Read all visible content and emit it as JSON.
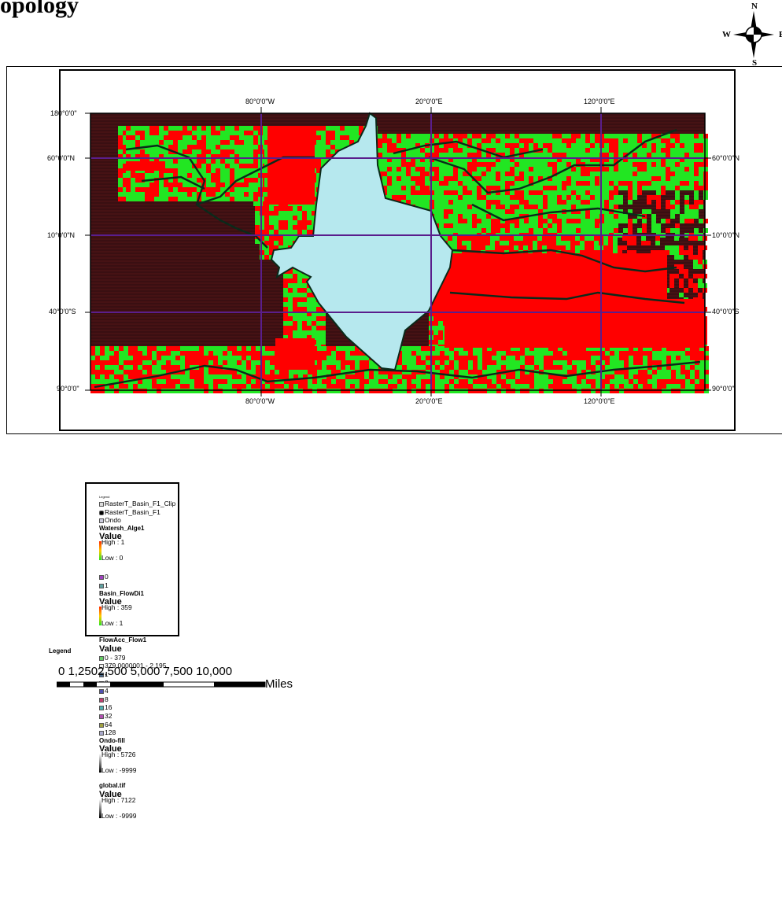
{
  "title": "opology",
  "north_arrow": {
    "n": "N",
    "s": "S",
    "w": "W",
    "e": "E"
  },
  "map": {
    "lat_labels_left": [
      "180°0'0\"",
      "60°0'0\"N",
      "10°0'0\"N",
      "40°0'0\"S",
      "90°0'0\""
    ],
    "lat_labels_right": [
      "60°0'0\"N",
      "10°0'0\"N",
      "40°0'0\"S",
      "90°0'0\""
    ],
    "lon_labels": [
      "80°0'0\"W",
      "20°0'0\"E",
      "120°0'0\"E"
    ],
    "colors": {
      "background_dark": "#3a0f12",
      "red": "#ff0000",
      "green": "#22e622",
      "water": "#b6e8ee",
      "grid": "#5a1e8c",
      "boundary": "#0a2a1a"
    }
  },
  "legend": {
    "heading": "Legend",
    "layers": {
      "clip": "RasterT_Basin_F1_Clip",
      "basin": "RasterT_Basin_F1",
      "ondo": "Ondo",
      "watersh": "Watersh_Alge1",
      "watersh_value": "Value",
      "watersh_high": "High : 1",
      "watersh_low": "Low : 0",
      "class0": "0",
      "class1": "1",
      "basin_flow": "Basin_FlowDi1",
      "basin_flow_value": "Value",
      "basin_flow_high": "High : 359",
      "basin_flow_low": "Low : 1",
      "flowacc": "FlowAcc_Flow1",
      "flowacc_value": "Value",
      "fa_0": "0 - 379",
      "fa_1": "379.0000001 - 2,195",
      "d1": "1",
      "d2": "2",
      "d4": "4",
      "d8": "8",
      "d16": "16",
      "d32": "32",
      "d64": "64",
      "d128": "128",
      "ondo_fill": "Ondo-fill",
      "ondo_fill_value": "Value",
      "ondo_fill_high": "High : 5726",
      "ondo_fill_low": "Low : -9999",
      "global": "global.tif",
      "global_value": "Value",
      "global_high": "High : 7122",
      "global_low": "Low : -9999"
    },
    "outer_label": "Legend"
  },
  "scale_bar": {
    "numbers": "0 1,2502,500   5,000   7,500  10,000",
    "units": "Miles"
  }
}
